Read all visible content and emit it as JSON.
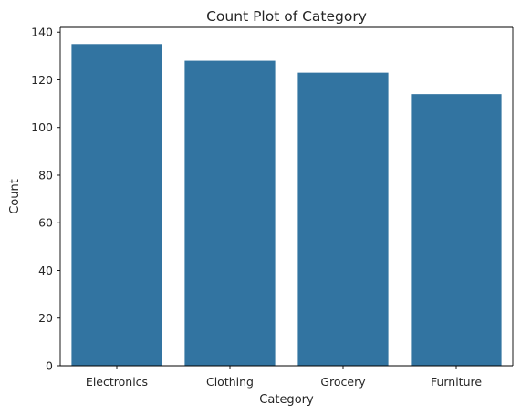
{
  "chart_data": {
    "type": "bar",
    "title": "Count Plot of Category",
    "xlabel": "Category",
    "ylabel": "Count",
    "categories": [
      "Electronics",
      "Clothing",
      "Grocery",
      "Furniture"
    ],
    "values": [
      135,
      128,
      123,
      114
    ],
    "ylim": [
      0,
      142
    ],
    "yticks": [
      0,
      20,
      40,
      60,
      80,
      100,
      120,
      140
    ],
    "bar_color": "#3274a1",
    "grid": false,
    "legend": "none"
  }
}
